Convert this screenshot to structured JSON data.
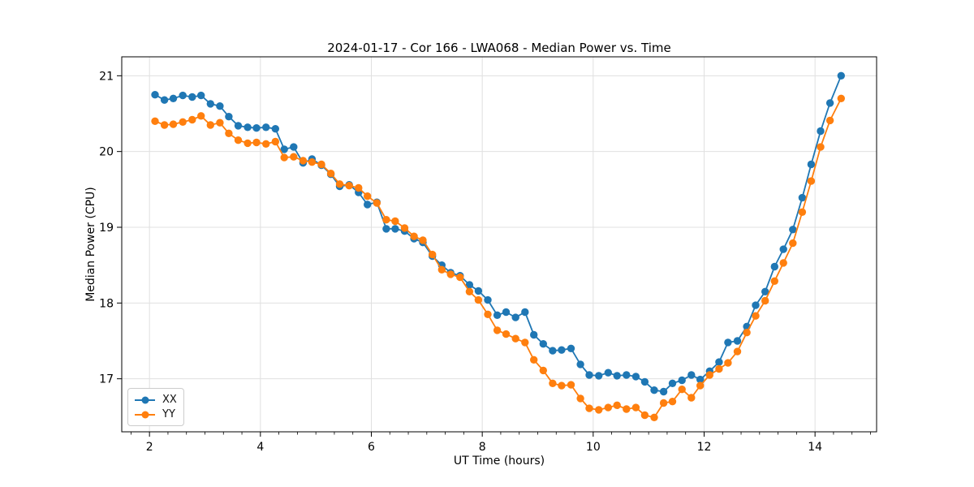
{
  "chart_data": {
    "type": "line",
    "title": "2024-01-17 - Cor 166 - LWA068 - Median Power vs. Time",
    "xlabel": "UT Time (hours)",
    "ylabel": "Median Power (CPU)",
    "xlim": [
      1.5,
      15.11
    ],
    "ylim": [
      16.3,
      21.25
    ],
    "x_major_ticks": [
      2,
      4,
      6,
      8,
      10,
      12,
      14
    ],
    "y_major_ticks": [
      17,
      18,
      19,
      20,
      21
    ],
    "x_minor_tick_step": 0.33333,
    "grid": true,
    "grid_color": "#e0e0e0",
    "axes_color": "#000000",
    "legend_position": "lower left",
    "x": [
      2.1,
      2.27,
      2.43,
      2.6,
      2.77,
      2.93,
      3.1,
      3.27,
      3.43,
      3.6,
      3.77,
      3.93,
      4.1,
      4.27,
      4.43,
      4.6,
      4.77,
      4.93,
      5.1,
      5.27,
      5.43,
      5.6,
      5.77,
      5.93,
      6.1,
      6.27,
      6.43,
      6.6,
      6.77,
      6.93,
      7.1,
      7.27,
      7.43,
      7.6,
      7.77,
      7.93,
      8.1,
      8.27,
      8.43,
      8.6,
      8.77,
      8.93,
      9.1,
      9.27,
      9.43,
      9.6,
      9.77,
      9.93,
      10.1,
      10.27,
      10.43,
      10.6,
      10.77,
      10.93,
      11.1,
      11.27,
      11.43,
      11.6,
      11.77,
      11.93,
      12.1,
      12.27,
      12.43,
      12.6,
      12.77,
      12.93,
      13.1,
      13.27,
      13.43,
      13.6,
      13.77,
      13.93,
      14.1,
      14.27,
      14.47
    ],
    "series": [
      {
        "name": "XX",
        "color": "#1f77b4",
        "marker": "circle",
        "values": [
          20.75,
          20.68,
          20.7,
          20.74,
          20.72,
          20.74,
          20.63,
          20.6,
          20.46,
          20.34,
          20.32,
          20.31,
          20.32,
          20.3,
          20.03,
          20.06,
          19.85,
          19.9,
          19.82,
          19.7,
          19.54,
          19.56,
          19.46,
          19.3,
          19.33,
          18.98,
          18.98,
          18.95,
          18.85,
          18.8,
          18.62,
          18.5,
          18.4,
          18.36,
          18.24,
          18.16,
          18.04,
          17.84,
          17.88,
          17.81,
          17.88,
          17.58,
          17.46,
          17.37,
          17.38,
          17.4,
          17.19,
          17.05,
          17.04,
          17.08,
          17.04,
          17.05,
          17.03,
          16.96,
          16.85,
          16.83,
          16.94,
          16.98,
          17.05,
          16.99,
          17.1,
          17.22,
          17.48,
          17.5,
          17.69,
          17.97,
          18.15,
          18.48,
          18.71,
          18.97,
          19.39,
          19.83,
          20.27,
          20.64,
          21.0
        ]
      },
      {
        "name": "YY",
        "color": "#ff7f0e",
        "marker": "circle",
        "values": [
          20.4,
          20.35,
          20.36,
          20.39,
          20.42,
          20.47,
          20.35,
          20.38,
          20.24,
          20.15,
          20.11,
          20.12,
          20.1,
          20.13,
          19.92,
          19.93,
          19.88,
          19.86,
          19.83,
          19.71,
          19.57,
          19.55,
          19.52,
          19.41,
          19.32,
          19.1,
          19.08,
          18.99,
          18.88,
          18.83,
          18.64,
          18.44,
          18.38,
          18.34,
          18.15,
          18.04,
          17.85,
          17.64,
          17.59,
          17.53,
          17.48,
          17.25,
          17.11,
          16.94,
          16.91,
          16.92,
          16.74,
          16.61,
          16.59,
          16.62,
          16.65,
          16.6,
          16.62,
          16.52,
          16.49,
          16.68,
          16.7,
          16.86,
          16.75,
          16.91,
          17.05,
          17.13,
          17.21,
          17.36,
          17.61,
          17.83,
          18.03,
          18.29,
          18.53,
          18.79,
          19.2,
          19.61,
          20.06,
          20.41,
          20.7
        ]
      }
    ]
  }
}
